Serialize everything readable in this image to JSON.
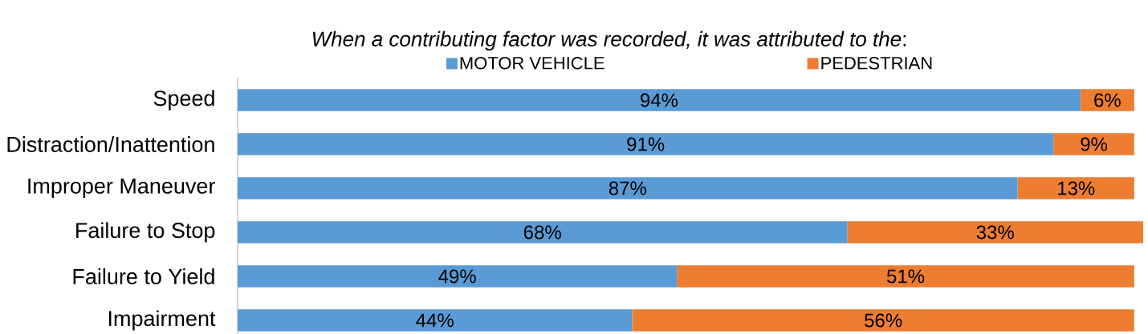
{
  "chart_data": {
    "type": "bar",
    "orientation": "horizontal",
    "stacked": true,
    "title": "*When a contributing factor was recorded, it was attributed to the*:",
    "categories": [
      "Speed",
      "Distraction/Inattention",
      "Improper Maneuver",
      "Failure to Stop",
      "Failure to Yield",
      "Impairment"
    ],
    "series": [
      {
        "name": "MOTOR VEHICLE",
        "color": "#5b9bd5",
        "values": [
          94,
          91,
          87,
          68,
          49,
          44
        ],
        "value_labels": [
          "94%",
          "91%",
          "87%",
          "68%",
          "49%",
          "44%"
        ]
      },
      {
        "name": "PEDESTRIAN",
        "color": "#ed7d31",
        "values": [
          6,
          9,
          13,
          33,
          51,
          56
        ],
        "value_labels": [
          "6%",
          "9%",
          "13%",
          "33%",
          "51%",
          "56%"
        ]
      }
    ],
    "legend": "top",
    "tick_labels": "y"
  }
}
